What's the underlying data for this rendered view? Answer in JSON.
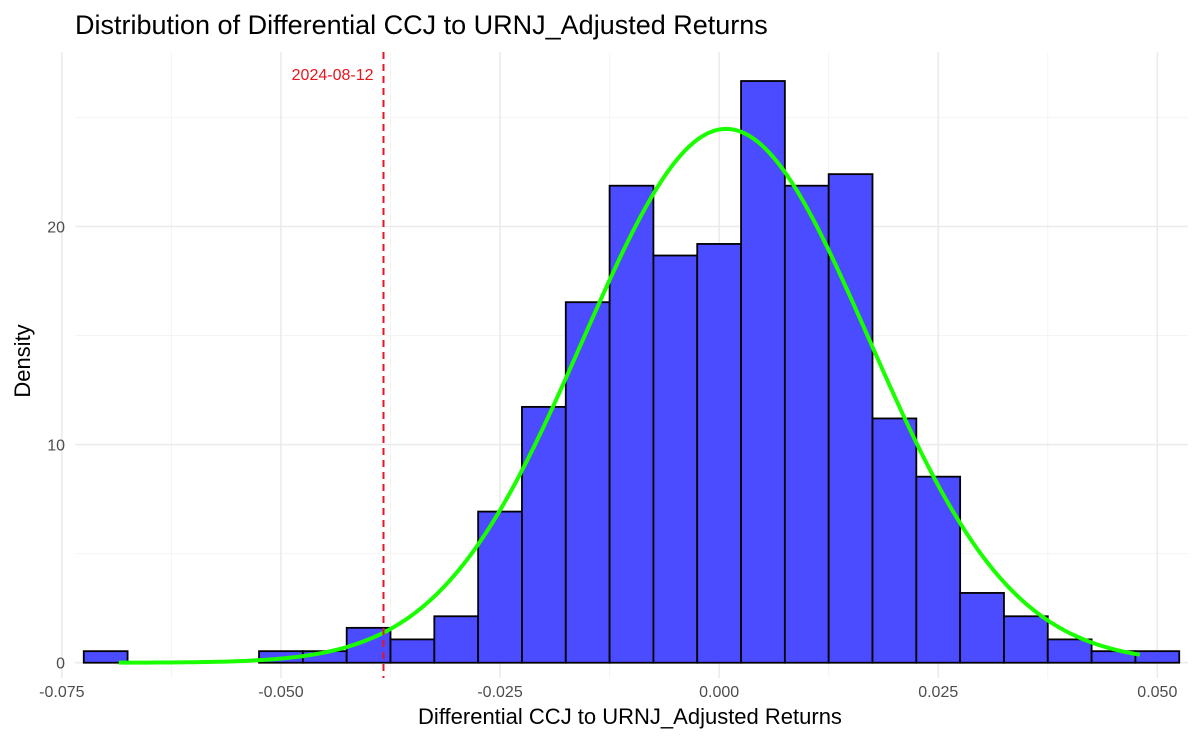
{
  "chart_data": {
    "type": "bar",
    "title": "Distribution of Differential CCJ to URNJ_Adjusted Returns",
    "xlabel": "Differential CCJ to URNJ_Adjusted Returns",
    "ylabel": "Density",
    "xlim": [
      -0.0735,
      0.0535
    ],
    "ylim": [
      -0.7,
      28
    ],
    "x_ticks": [
      -0.075,
      -0.05,
      -0.025,
      0.0,
      0.025,
      0.05
    ],
    "x_tick_labels": [
      "-0.075",
      "-0.050",
      "-0.025",
      "0.000",
      "0.025",
      "0.050"
    ],
    "y_ticks": [
      0,
      10,
      20
    ],
    "y_tick_labels": [
      "0",
      "10",
      "20"
    ],
    "grid": true,
    "bin_width": 0.005,
    "bins": [
      {
        "x0": -0.0725,
        "x1": -0.0675,
        "density": 0.53
      },
      {
        "x0": -0.0675,
        "x1": -0.0625,
        "density": 0
      },
      {
        "x0": -0.0625,
        "x1": -0.0575,
        "density": 0
      },
      {
        "x0": -0.0575,
        "x1": -0.0525,
        "density": 0
      },
      {
        "x0": -0.0525,
        "x1": -0.0475,
        "density": 0.53
      },
      {
        "x0": -0.0475,
        "x1": -0.0425,
        "density": 0.53
      },
      {
        "x0": -0.0425,
        "x1": -0.0375,
        "density": 1.6
      },
      {
        "x0": -0.0375,
        "x1": -0.0325,
        "density": 1.07
      },
      {
        "x0": -0.0325,
        "x1": -0.0275,
        "density": 2.13
      },
      {
        "x0": -0.0275,
        "x1": -0.0225,
        "density": 6.93
      },
      {
        "x0": -0.0225,
        "x1": -0.0175,
        "density": 11.73
      },
      {
        "x0": -0.0175,
        "x1": -0.0125,
        "density": 16.53
      },
      {
        "x0": -0.0125,
        "x1": -0.0075,
        "density": 21.87
      },
      {
        "x0": -0.0075,
        "x1": -0.0025,
        "density": 18.67
      },
      {
        "x0": -0.0025,
        "x1": 0.0025,
        "density": 19.2
      },
      {
        "x0": 0.0025,
        "x1": 0.0075,
        "density": 26.67
      },
      {
        "x0": 0.0075,
        "x1": 0.0125,
        "density": 21.87
      },
      {
        "x0": 0.0125,
        "x1": 0.0175,
        "density": 22.4
      },
      {
        "x0": 0.0175,
        "x1": 0.0225,
        "density": 11.2
      },
      {
        "x0": 0.0225,
        "x1": 0.0275,
        "density": 8.53
      },
      {
        "x0": 0.0275,
        "x1": 0.0325,
        "density": 3.2
      },
      {
        "x0": 0.0325,
        "x1": 0.0375,
        "density": 2.13
      },
      {
        "x0": 0.0375,
        "x1": 0.0425,
        "density": 1.07
      },
      {
        "x0": 0.0425,
        "x1": 0.0475,
        "density": 0.53
      },
      {
        "x0": 0.0475,
        "x1": 0.0525,
        "density": 0.53
      }
    ],
    "normal_curve": {
      "mean": 0.0008,
      "sd": 0.0163,
      "x_range": [
        -0.0685,
        0.048
      ],
      "color": "#1aff00"
    },
    "vline": {
      "x": -0.0383,
      "label": "2024-08-12",
      "color": "#e8141e",
      "style": "dashed"
    },
    "bar_fill": "#4b4bff",
    "bar_border": "#000000"
  }
}
